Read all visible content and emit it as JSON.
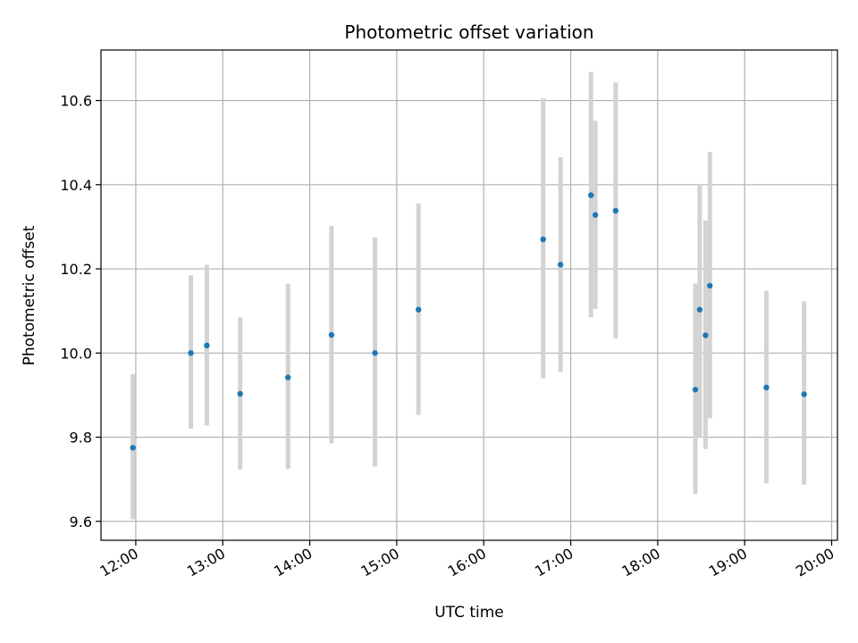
{
  "chart_data": {
    "type": "scatter",
    "title": "Photometric offset variation",
    "xlabel": "UTC time",
    "ylabel": "Photometric offset",
    "x_ticks": [
      "12:00",
      "13:00",
      "14:00",
      "15:00",
      "16:00",
      "17:00",
      "18:00",
      "19:00",
      "20:00"
    ],
    "y_ticks": [
      "9.6",
      "9.8",
      "10.0",
      "10.2",
      "10.4",
      "10.6"
    ],
    "xlim": [
      "11:36",
      "20:04"
    ],
    "ylim": [
      9.555,
      10.72
    ],
    "grid": true,
    "colors": {
      "points": "#1f77b4",
      "errorbars": "#d3d3d3",
      "grid": "#b0b0b0"
    },
    "points": [
      {
        "t": "11:58",
        "y": 9.775,
        "low": 9.605,
        "high": 9.95
      },
      {
        "t": "12:38",
        "y": 10.0,
        "low": 9.82,
        "high": 10.185
      },
      {
        "t": "12:49",
        "y": 10.018,
        "low": 9.828,
        "high": 10.21
      },
      {
        "t": "13:12",
        "y": 9.903,
        "low": 9.723,
        "high": 10.085
      },
      {
        "t": "13:45",
        "y": 9.942,
        "low": 9.725,
        "high": 10.165
      },
      {
        "t": "14:15",
        "y": 10.043,
        "low": 9.785,
        "high": 10.302
      },
      {
        "t": "14:45",
        "y": 10.0,
        "low": 9.73,
        "high": 10.275
      },
      {
        "t": "15:15",
        "y": 10.103,
        "low": 9.853,
        "high": 10.355
      },
      {
        "t": "16:41",
        "y": 10.27,
        "low": 9.94,
        "high": 10.605
      },
      {
        "t": "16:53",
        "y": 10.21,
        "low": 9.955,
        "high": 10.465
      },
      {
        "t": "17:14",
        "y": 10.375,
        "low": 10.085,
        "high": 10.668
      },
      {
        "t": "17:17",
        "y": 10.328,
        "low": 10.105,
        "high": 10.552
      },
      {
        "t": "17:31",
        "y": 10.338,
        "low": 10.035,
        "high": 10.643
      },
      {
        "t": "18:26",
        "y": 9.913,
        "low": 9.665,
        "high": 10.165
      },
      {
        "t": "18:29",
        "y": 10.103,
        "low": 9.8,
        "high": 10.402
      },
      {
        "t": "18:33",
        "y": 10.042,
        "low": 9.772,
        "high": 10.315
      },
      {
        "t": "18:36",
        "y": 10.16,
        "low": 9.845,
        "high": 10.478
      },
      {
        "t": "19:15",
        "y": 9.918,
        "low": 9.69,
        "high": 10.148
      },
      {
        "t": "19:41",
        "y": 9.902,
        "low": 9.687,
        "high": 10.123
      }
    ]
  }
}
